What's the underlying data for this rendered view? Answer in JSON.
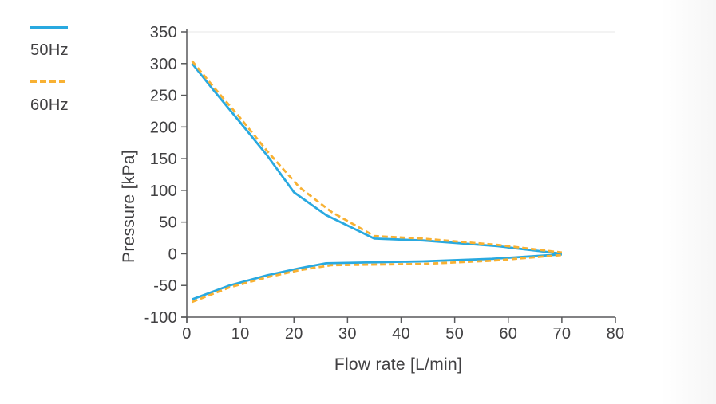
{
  "legend": {
    "items": [
      {
        "label": "50Hz",
        "line_style": "solid",
        "color": "#29A9E0"
      },
      {
        "label": "60Hz",
        "line_style": "dashed",
        "color": "#F8B133"
      }
    ]
  },
  "chart_data": {
    "type": "line",
    "title": "",
    "xlabel": "Flow rate [L/min]",
    "ylabel": "Pressure [kPa]",
    "xlim": [
      0,
      80
    ],
    "ylim": [
      -100,
      350
    ],
    "x_ticks": [
      0,
      10,
      20,
      30,
      40,
      50,
      60,
      70,
      80
    ],
    "y_ticks": [
      350,
      300,
      250,
      200,
      150,
      100,
      50,
      0,
      -50,
      -100
    ],
    "grid": false,
    "plot_top_border": true,
    "legend_position": "outside-top-left",
    "series": [
      {
        "name": "50Hz",
        "color": "#29A9E0",
        "line_style": "solid",
        "branches": {
          "upper": [
            [
              1,
              300
            ],
            [
              5,
              258
            ],
            [
              10,
              207
            ],
            [
              15,
              155
            ],
            [
              20,
              97
            ],
            [
              26,
              61
            ],
            [
              35,
              24
            ],
            [
              44,
              21
            ],
            [
              58,
              12
            ],
            [
              70,
              0
            ]
          ],
          "lower": [
            [
              1,
              -72
            ],
            [
              8,
              -50
            ],
            [
              15,
              -34
            ],
            [
              21,
              -23
            ],
            [
              26,
              -15
            ],
            [
              44,
              -12
            ],
            [
              57,
              -8
            ],
            [
              70,
              -1
            ]
          ]
        }
      },
      {
        "name": "60Hz",
        "color": "#F8B133",
        "line_style": "dashed",
        "branches": {
          "upper": [
            [
              1,
              304
            ],
            [
              5,
              263
            ],
            [
              10,
              214
            ],
            [
              15,
              162
            ],
            [
              21,
              105
            ],
            [
              27,
              66
            ],
            [
              35,
              28
            ],
            [
              44,
              24
            ],
            [
              58,
              14
            ],
            [
              70,
              2
            ]
          ],
          "lower": [
            [
              1,
              -76
            ],
            [
              8,
              -53
            ],
            [
              15,
              -37
            ],
            [
              21,
              -26
            ],
            [
              27,
              -18
            ],
            [
              44,
              -16
            ],
            [
              57,
              -11
            ],
            [
              70,
              -2
            ]
          ]
        }
      }
    ]
  },
  "colors": {
    "axis": "#58595B",
    "tick_label": "#414042",
    "top_border": "#ECECEC",
    "background": "#FFFFFF"
  }
}
